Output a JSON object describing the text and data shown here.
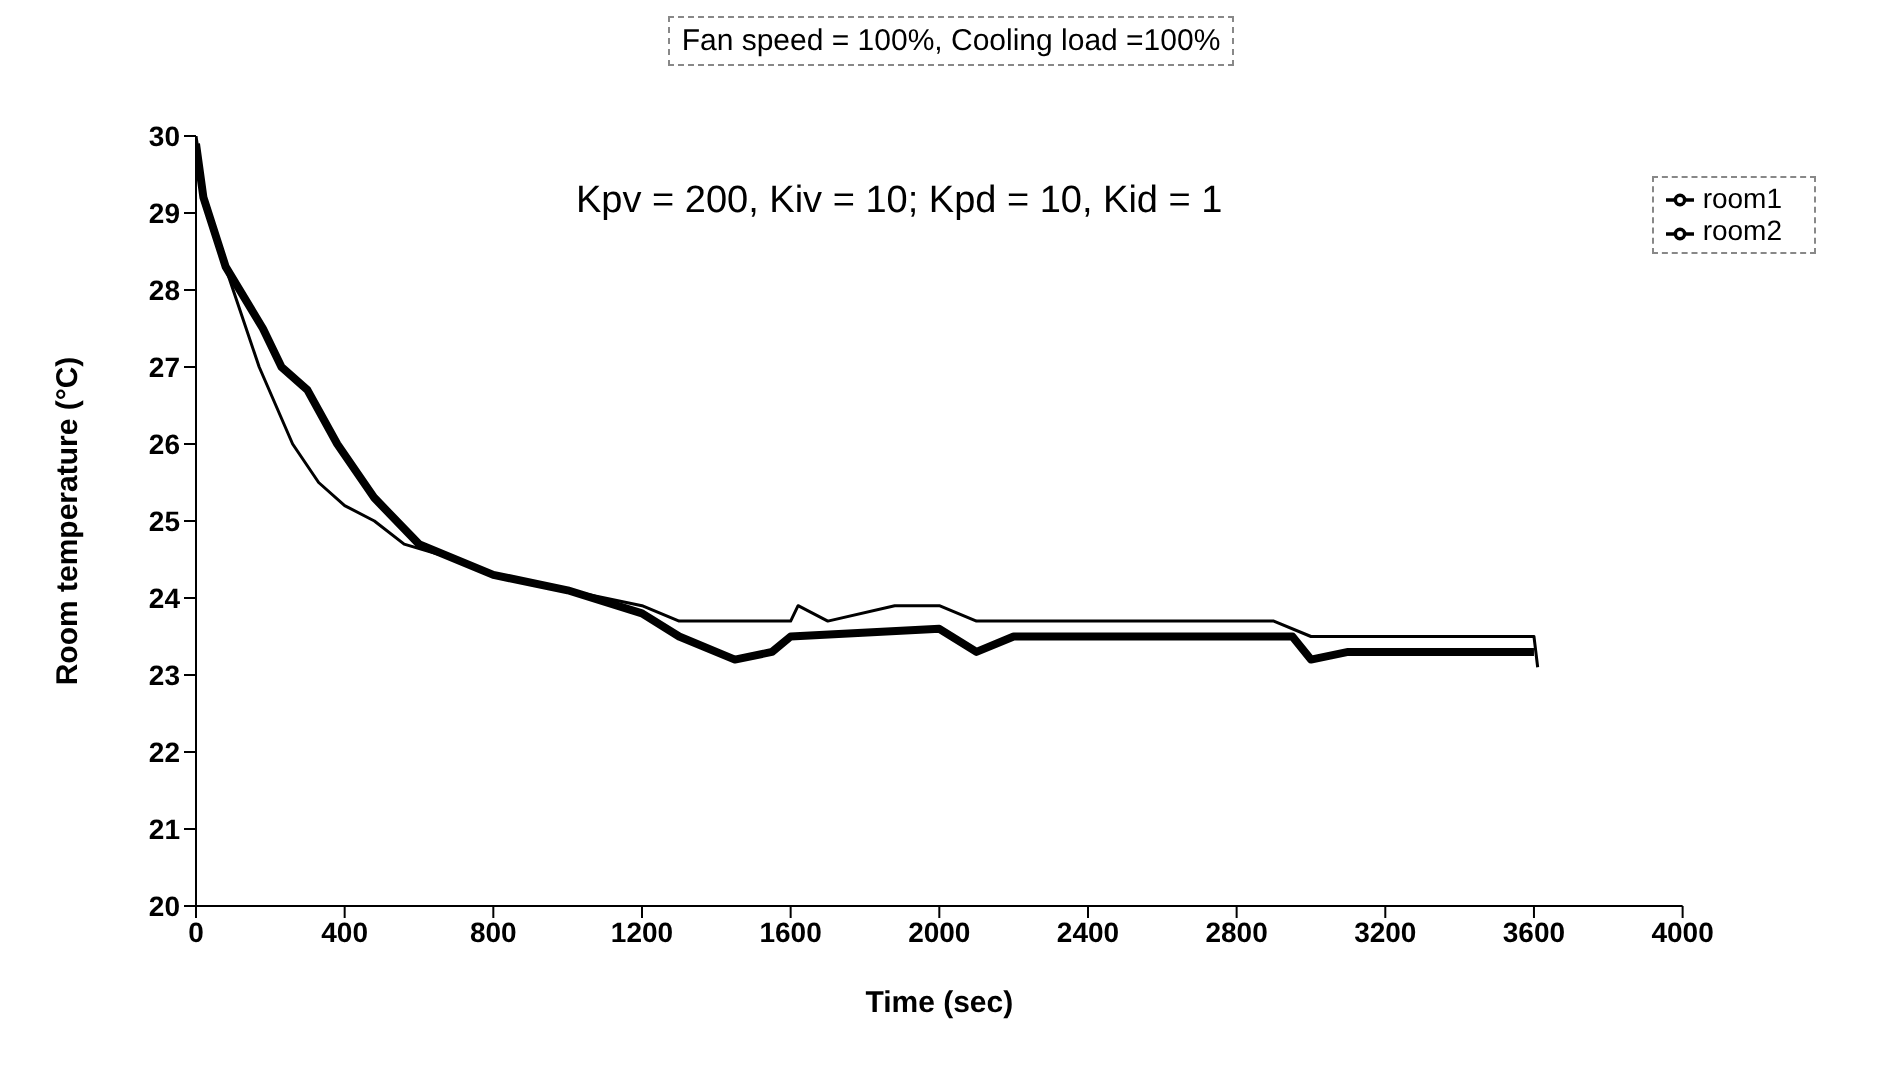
{
  "chart_data": {
    "type": "line",
    "title": "Fan speed = 100%, Cooling load =100%",
    "xlabel": "Time (sec)",
    "ylabel": "Room temperature (°C)",
    "annotations": [
      "Kpv = 200, Kiv = 10; Kpd = 10, Kid = 1"
    ],
    "xlim": [
      0,
      4000
    ],
    "xticks": [
      0,
      400,
      800,
      1200,
      1600,
      2000,
      2400,
      2800,
      3200,
      3600,
      4000
    ],
    "ylim": [
      20,
      30
    ],
    "yticks": [
      20,
      21,
      22,
      23,
      24,
      25,
      26,
      27,
      28,
      29,
      30
    ],
    "legend": "top right",
    "marker": "none",
    "line_style": "solid",
    "series": [
      {
        "name": "room1",
        "color": "#000000",
        "x": [
          0,
          30,
          100,
          170,
          260,
          330,
          400,
          480,
          560,
          700,
          800,
          1000,
          1200,
          1300,
          1600,
          1620,
          1700,
          1880,
          2000,
          2100,
          2900,
          3000,
          3600,
          3610
        ],
        "values": [
          30,
          29,
          28,
          27,
          26,
          25.5,
          25.2,
          25,
          24.7,
          24.5,
          24.3,
          24.1,
          23.9,
          23.7,
          23.7,
          23.9,
          23.7,
          23.9,
          23.9,
          23.7,
          23.7,
          23.5,
          23.5,
          23.1
        ]
      },
      {
        "name": "room2",
        "color": "#000000",
        "x": [
          0,
          20,
          80,
          180,
          230,
          300,
          380,
          480,
          500,
          600,
          800,
          1000,
          1200,
          1300,
          1450,
          1550,
          1600,
          2000,
          2100,
          2200,
          2950,
          3000,
          3100,
          3600
        ],
        "values": [
          29.9,
          29.2,
          28.3,
          27.5,
          27,
          26.7,
          26,
          25.3,
          25.2,
          24.7,
          24.3,
          24.1,
          23.8,
          23.5,
          23.2,
          23.3,
          23.5,
          23.6,
          23.3,
          23.5,
          23.5,
          23.2,
          23.3,
          23.3
        ]
      }
    ]
  }
}
